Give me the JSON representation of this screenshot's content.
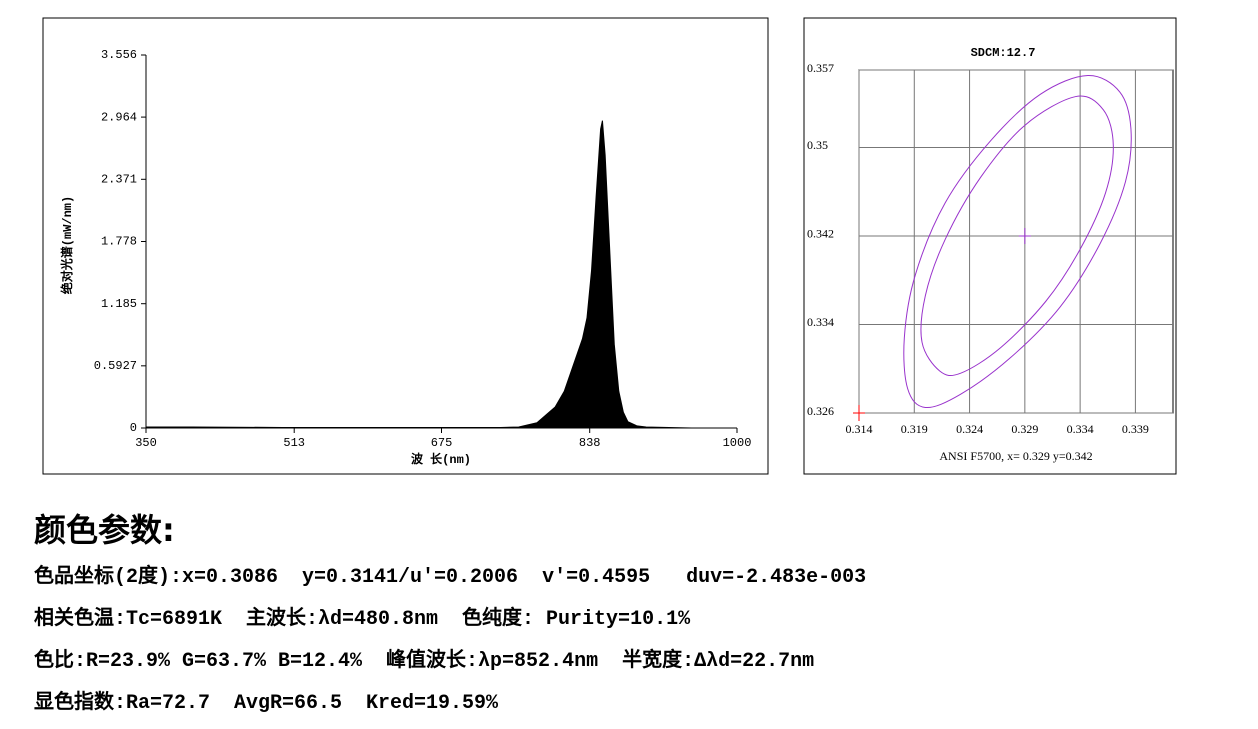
{
  "chart_data": [
    {
      "type": "area",
      "ylabel": "绝对光谱(mW/nm)",
      "xlabel": "波 长(nm)",
      "color": "#000000",
      "x": [
        350,
        400,
        500,
        600,
        700,
        740,
        760,
        780,
        800,
        810,
        820,
        830,
        835,
        840,
        845,
        850,
        852,
        855,
        860,
        865,
        870,
        875,
        880,
        890,
        900,
        950,
        1000
      ],
      "values": [
        0.01,
        0.01,
        0.005,
        0.005,
        0.005,
        0.005,
        0.01,
        0.05,
        0.2,
        0.35,
        0.6,
        0.85,
        1.05,
        1.5,
        2.2,
        2.85,
        2.93,
        2.6,
        1.7,
        0.8,
        0.35,
        0.15,
        0.06,
        0.02,
        0.01,
        0,
        0
      ],
      "xlim": [
        350,
        1000
      ],
      "xticks": [
        350,
        513,
        675,
        838,
        1000
      ],
      "ylim": [
        0,
        3.556
      ],
      "yticks": [
        0,
        0.5927,
        1.185,
        1.778,
        2.371,
        2.964,
        3.556
      ]
    },
    {
      "type": "ellipse",
      "title": "SDCM:12.7",
      "xlabel": "ANSI  F5700, x= 0.329 y=0.342",
      "grid": true,
      "xlim": [
        0.314,
        0.3424
      ],
      "xticks": [
        0.314,
        0.319,
        0.324,
        0.329,
        0.334,
        0.339
      ],
      "ylim": [
        0.326,
        0.357
      ],
      "yticks": [
        0.326,
        0.334,
        0.342,
        0.35,
        0.357
      ],
      "series": [
        {
          "color": "#9933cc",
          "x": [
            0.3347,
            0.3376,
            0.3386,
            0.3381,
            0.3358,
            0.3322,
            0.3277,
            0.3232,
            0.32,
            0.3184,
            0.3181,
            0.3191,
            0.3218,
            0.3259,
            0.3304
          ],
          "values": [
            0.3565,
            0.355,
            0.3516,
            0.3469,
            0.3413,
            0.3356,
            0.331,
            0.3277,
            0.3265,
            0.3282,
            0.3328,
            0.3385,
            0.345,
            0.3506,
            0.3548
          ]
        },
        {
          "color": "#9933cc",
          "x": [
            0.3336,
            0.3361,
            0.337,
            0.3363,
            0.334,
            0.3309,
            0.3268,
            0.3232,
            0.3213,
            0.3197,
            0.32,
            0.3218,
            0.325,
            0.329
          ],
          "values": [
            0.3546,
            0.3534,
            0.3502,
            0.3459,
            0.3408,
            0.3361,
            0.3319,
            0.3296,
            0.3298,
            0.3324,
            0.3366,
            0.3417,
            0.3473,
            0.352
          ]
        }
      ],
      "points": [
        {
          "x": 0.329,
          "y": 0.342,
          "color": "#9933cc"
        },
        {
          "x": 0.314,
          "y": 0.326,
          "color": "#ff0000"
        }
      ]
    }
  ],
  "parameters": {
    "heading": "颜色参数:",
    "lines": [
      "色品坐标(2度):x=0.3086  y=0.3141/u'=0.2006  v'=0.4595   duv=-2.483e-003",
      "相关色温:Tc=6891K  主波长:λd=480.8nm  色纯度: Purity=10.1%",
      "色比:R=23.9% G=63.7% B=12.4%  峰值波长:λp=852.4nm  半宽度:Δλd=22.7nm",
      "显色指数:Ra=72.7  AvgR=66.5  Kred=19.59%"
    ]
  }
}
